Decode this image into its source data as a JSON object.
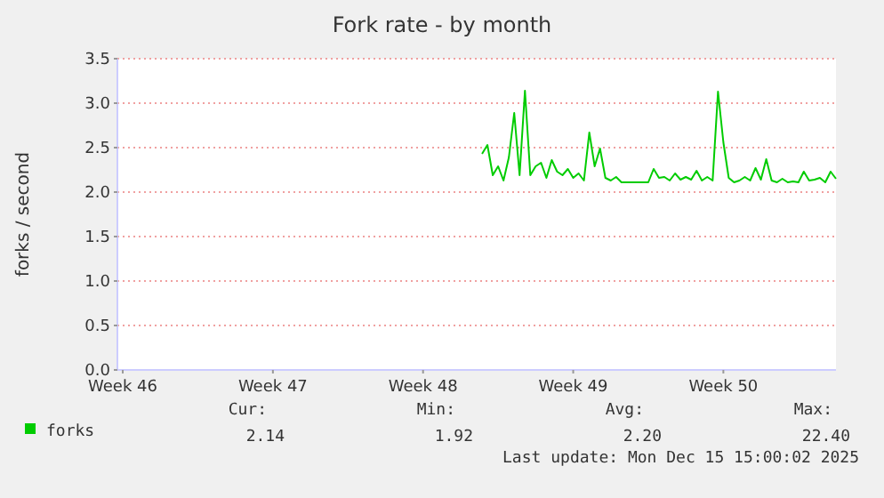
{
  "chart_data": {
    "type": "line",
    "title": "Fork rate - by month",
    "ylabel": "forks / second",
    "categories": [
      null,
      "Week 46",
      null,
      null,
      null,
      null,
      null,
      null,
      null,
      null,
      null,
      null,
      null,
      null,
      null,
      null,
      null,
      null,
      null,
      null,
      null,
      null,
      null,
      null,
      null,
      null,
      null,
      null,
      null,
      "Week 47",
      null,
      null,
      null,
      null,
      null,
      null,
      null,
      null,
      null,
      null,
      null,
      null,
      null,
      null,
      null,
      null,
      null,
      null,
      null,
      null,
      null,
      null,
      null,
      null,
      null,
      null,
      null,
      "Week 48",
      null,
      null,
      null,
      null,
      null,
      null,
      null,
      null,
      null,
      null,
      null,
      null,
      null,
      null,
      null,
      null,
      null,
      null,
      null,
      null,
      null,
      null,
      null,
      null,
      null,
      null,
      null,
      "Week 49",
      null,
      null,
      null,
      null,
      null,
      null,
      null,
      null,
      null,
      null,
      null,
      null,
      null,
      null,
      null,
      null,
      null,
      null,
      null,
      null,
      null,
      null,
      null,
      null,
      null,
      null,
      null,
      "Week 50",
      null,
      null,
      null,
      null,
      null,
      null,
      null,
      null,
      null,
      null,
      null,
      null,
      null,
      null,
      null,
      null,
      null,
      null,
      null,
      null,
      null
    ],
    "ylim": [
      0,
      3.5
    ],
    "yticks": [
      {
        "value": 0,
        "label": "0.0"
      },
      {
        "value": 0.5,
        "label": "0.5"
      },
      {
        "value": 1,
        "label": "1.0"
      },
      {
        "value": 1.5,
        "label": "1.5"
      },
      {
        "value": 2,
        "label": "2.0"
      },
      {
        "value": 2.5,
        "label": "2.5"
      },
      {
        "value": 3,
        "label": "3.0"
      },
      {
        "value": 3.5,
        "label": "3.5"
      }
    ],
    "grid": "y",
    "legend": "bottom left",
    "marker": "none",
    "line_style": "solid",
    "series": [
      {
        "name": "forks",
        "color": "#00cc00",
        "values": [
          null,
          null,
          null,
          null,
          null,
          null,
          null,
          null,
          null,
          null,
          null,
          null,
          null,
          null,
          null,
          null,
          null,
          null,
          null,
          null,
          null,
          null,
          null,
          null,
          null,
          null,
          null,
          null,
          null,
          null,
          null,
          null,
          null,
          null,
          null,
          null,
          null,
          null,
          null,
          null,
          null,
          null,
          null,
          null,
          null,
          null,
          null,
          null,
          null,
          null,
          null,
          null,
          null,
          null,
          null,
          null,
          null,
          null,
          null,
          null,
          null,
          null,
          null,
          null,
          null,
          null,
          null,
          null,
          2.43,
          2.53,
          2.19,
          2.29,
          2.13,
          2.39,
          2.89,
          2.19,
          3.14,
          2.19,
          2.29,
          2.33,
          2.16,
          2.36,
          2.23,
          2.19,
          2.26,
          2.16,
          2.21,
          2.13,
          2.67,
          2.29,
          2.49,
          2.16,
          2.13,
          2.17,
          2.11,
          2.11,
          2.11,
          2.11,
          2.11,
          2.11,
          2.26,
          2.16,
          2.17,
          2.13,
          2.21,
          2.14,
          2.17,
          2.14,
          2.24,
          2.13,
          2.17,
          2.13,
          3.13,
          2.56,
          2.16,
          2.11,
          2.13,
          2.17,
          2.13,
          2.27,
          2.14,
          2.37,
          2.13,
          2.11,
          2.15,
          2.11,
          2.12,
          2.11,
          2.23,
          2.13,
          2.14,
          2.16,
          2.11,
          2.23,
          2.15
        ]
      }
    ],
    "annotations": [
      "Cur:",
      "Min:",
      "Avg:",
      "Max:",
      "2.14",
      "1.92",
      "2.20",
      "22.40",
      "Last update: Mon Dec 15 15:00:02 2025"
    ]
  }
}
